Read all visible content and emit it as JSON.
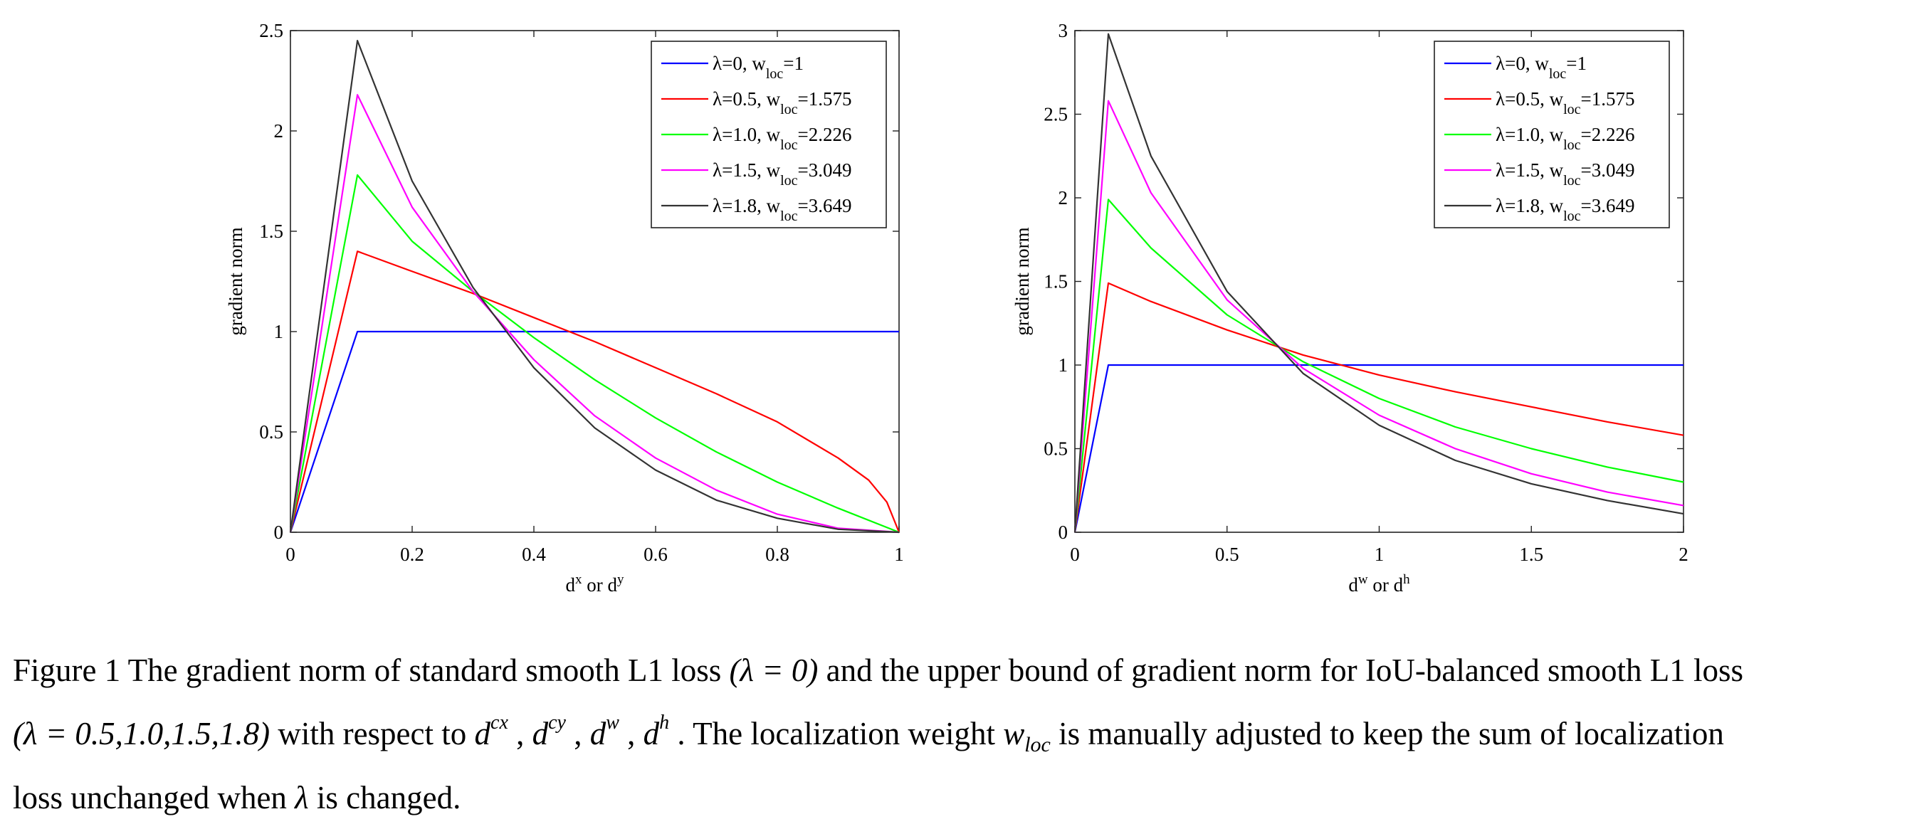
{
  "chart_data": [
    {
      "type": "line",
      "ylabel": "gradient norm",
      "xlabel": {
        "base1": "d",
        "sup1": "x",
        "mid": " or ",
        "base2": "d",
        "sup2": "y"
      },
      "xlim": [
        0,
        1
      ],
      "ylim": [
        0,
        2.5
      ],
      "xticks": [
        0,
        0.2,
        0.4,
        0.6,
        0.8,
        1
      ],
      "xtick_labels": [
        "0",
        "0.2",
        "0.4",
        "0.6",
        "0.8",
        "1"
      ],
      "yticks": [
        0,
        0.5,
        1,
        1.5,
        2,
        2.5
      ],
      "ytick_labels": [
        "0",
        "0.5",
        "1",
        "1.5",
        "2",
        "2.5"
      ],
      "grid": false,
      "legend_position": "top-right",
      "series": [
        {
          "name": "λ=0, w_loc=1",
          "legend": {
            "main": "λ=0, w",
            "sub": "loc",
            "tail": "=1"
          },
          "color": "#0000ff",
          "x": [
            0,
            0.11,
            1
          ],
          "y": [
            0,
            1.0,
            1.0
          ]
        },
        {
          "name": "λ=0.5, w_loc=1.575",
          "legend": {
            "main": "λ=0.5, w",
            "sub": "loc",
            "tail": "=1.575"
          },
          "color": "#ff0000",
          "x": [
            0,
            0.11,
            0.2,
            0.3,
            0.4,
            0.5,
            0.6,
            0.7,
            0.8,
            0.9,
            0.95,
            0.98,
            1.0
          ],
          "y": [
            0,
            1.4,
            1.3,
            1.19,
            1.07,
            0.95,
            0.82,
            0.69,
            0.55,
            0.37,
            0.26,
            0.15,
            0
          ]
        },
        {
          "name": "λ=1.0, w_loc=2.226",
          "legend": {
            "main": "λ=1.0, w",
            "sub": "loc",
            "tail": "=2.226"
          },
          "color": "#00ff00",
          "x": [
            0,
            0.11,
            0.2,
            0.3,
            0.4,
            0.5,
            0.6,
            0.7,
            0.8,
            0.9,
            1.0
          ],
          "y": [
            0,
            1.78,
            1.45,
            1.2,
            0.97,
            0.76,
            0.57,
            0.4,
            0.25,
            0.12,
            0
          ]
        },
        {
          "name": "λ=1.5, w_loc=3.049",
          "legend": {
            "main": "λ=1.5, w",
            "sub": "loc",
            "tail": "=3.049"
          },
          "color": "#ff00ff",
          "x": [
            0,
            0.11,
            0.2,
            0.3,
            0.4,
            0.5,
            0.6,
            0.7,
            0.8,
            0.9,
            1.0
          ],
          "y": [
            0,
            2.18,
            1.62,
            1.2,
            0.86,
            0.58,
            0.37,
            0.21,
            0.09,
            0.02,
            0
          ]
        },
        {
          "name": "λ=1.8, w_loc=3.649",
          "legend": {
            "main": "λ=1.8, w",
            "sub": "loc",
            "tail": "=3.649"
          },
          "color": "#333333",
          "x": [
            0,
            0.11,
            0.2,
            0.3,
            0.4,
            0.5,
            0.6,
            0.7,
            0.8,
            0.9,
            1.0
          ],
          "y": [
            0,
            2.45,
            1.75,
            1.22,
            0.82,
            0.52,
            0.31,
            0.16,
            0.07,
            0.015,
            0
          ]
        }
      ]
    },
    {
      "type": "line",
      "ylabel": "gradient norm",
      "xlabel": {
        "base1": "d",
        "sup1": "w",
        "mid": " or ",
        "base2": "d",
        "sup2": "h"
      },
      "xlim": [
        0,
        2
      ],
      "ylim": [
        0,
        3
      ],
      "xticks": [
        0,
        0.5,
        1,
        1.5,
        2
      ],
      "xtick_labels": [
        "0",
        "0.5",
        "1",
        "1.5",
        "2"
      ],
      "yticks": [
        0,
        0.5,
        1,
        1.5,
        2,
        2.5,
        3
      ],
      "ytick_labels": [
        "0",
        "0.5",
        "1",
        "1.5",
        "2",
        "2.5",
        "3"
      ],
      "grid": false,
      "legend_position": "top-right",
      "series": [
        {
          "name": "λ=0, w_loc=1",
          "legend": {
            "main": "λ=0, w",
            "sub": "loc",
            "tail": "=1"
          },
          "color": "#0000ff",
          "x": [
            0,
            0.11,
            2
          ],
          "y": [
            0,
            1.0,
            1.0
          ]
        },
        {
          "name": "λ=0.5, w_loc=1.575",
          "legend": {
            "main": "λ=0.5, w",
            "sub": "loc",
            "tail": "=1.575"
          },
          "color": "#ff0000",
          "x": [
            0,
            0.11,
            0.25,
            0.5,
            0.75,
            1.0,
            1.25,
            1.5,
            1.75,
            2.0
          ],
          "y": [
            0,
            1.49,
            1.38,
            1.21,
            1.06,
            0.94,
            0.84,
            0.75,
            0.66,
            0.58
          ]
        },
        {
          "name": "λ=1.0, w_loc=2.226",
          "legend": {
            "main": "λ=1.0, w",
            "sub": "loc",
            "tail": "=2.226"
          },
          "color": "#00ff00",
          "x": [
            0,
            0.11,
            0.25,
            0.5,
            0.75,
            1.0,
            1.25,
            1.5,
            1.75,
            2.0
          ],
          "y": [
            0,
            1.99,
            1.7,
            1.3,
            1.02,
            0.8,
            0.63,
            0.5,
            0.39,
            0.3
          ]
        },
        {
          "name": "λ=1.5, w_loc=3.049",
          "legend": {
            "main": "λ=1.5, w",
            "sub": "loc",
            "tail": "=3.049"
          },
          "color": "#ff00ff",
          "x": [
            0,
            0.11,
            0.25,
            0.5,
            0.75,
            1.0,
            1.25,
            1.5,
            1.75,
            2.0
          ],
          "y": [
            0,
            2.58,
            2.03,
            1.39,
            0.98,
            0.7,
            0.5,
            0.35,
            0.24,
            0.16
          ]
        },
        {
          "name": "λ=1.8, w_loc=3.649",
          "legend": {
            "main": "λ=1.8, w",
            "sub": "loc",
            "tail": "=3.649"
          },
          "color": "#333333",
          "x": [
            0,
            0.11,
            0.25,
            0.5,
            0.75,
            1.0,
            1.25,
            1.5,
            1.75,
            2.0
          ],
          "y": [
            0,
            2.98,
            2.25,
            1.44,
            0.95,
            0.64,
            0.43,
            0.29,
            0.19,
            0.11
          ]
        }
      ]
    }
  ],
  "caption": {
    "line1": {
      "part1": "Figure 1 The gradient norm of standard smooth L1 loss ",
      "math1": "(λ = 0)",
      "part2": " and the upper bound of gradient norm for IoU-balanced smooth L1 loss"
    },
    "line2": {
      "math1": "(λ = 0.5,1.0,1.5,1.8)",
      "part1": " with respect to ",
      "d": "d",
      "cx": "cx",
      "cy": "cy",
      "w": "w",
      "h": "h",
      "sep": " , ",
      "part2": " . The localization weight ",
      "wbase": "w",
      "wsub": "loc",
      "part3": " is manually adjusted to keep the sum of localization"
    },
    "line3": {
      "part1": "loss unchanged when ",
      "lambda": "λ",
      "part2": " is changed."
    }
  }
}
